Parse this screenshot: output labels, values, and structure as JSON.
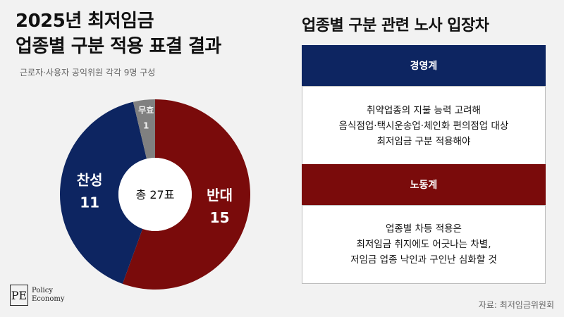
{
  "left_title": [
    "2025년 최저임금",
    "업종별 구분 적용 표결 결과"
  ],
  "subtitle": "근로자·사용자 공익위원 각각 9명 구성",
  "chart_data": {
    "type": "pie",
    "title": "2025년 최저임금 업종별 구분 적용 표결 결과",
    "center_label": "총 27표",
    "categories": [
      "반대",
      "찬성",
      "무효"
    ],
    "values": [
      15,
      11,
      1
    ],
    "colors": [
      "#7a0b0b",
      "#0d2561",
      "#808080"
    ]
  },
  "right_title": "업종별 구분 관련 노사 입장차",
  "panels": [
    {
      "heading": "경영계",
      "lines": [
        "취약업종의 지불 능력 고려해",
        "음식점업·택시운송업·체인화 편의점업 대상",
        "최저임금 구분 적용해야"
      ]
    },
    {
      "heading": "노동계",
      "lines": [
        "업종별 차등 적용은",
        "최저임금 취지에도 어긋나는 차별,",
        "저임금 업종 낙인과 구인난 심화할 것"
      ]
    }
  ],
  "logo": {
    "mark": "PE",
    "lines": [
      "Policy",
      "Economy"
    ]
  },
  "source": "자료: 최저임금위원회"
}
